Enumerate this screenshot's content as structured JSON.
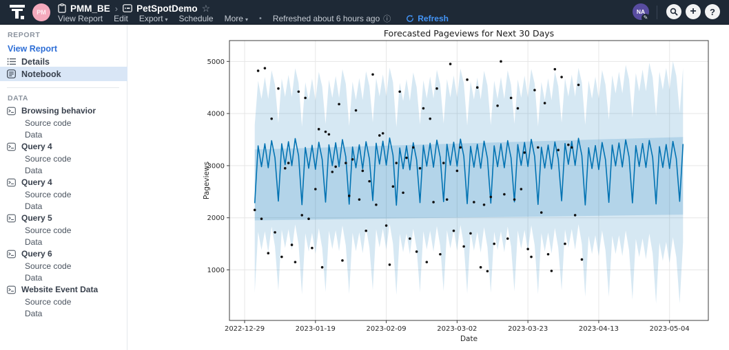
{
  "header": {
    "workspace_avatar": "PM",
    "workspace": "PMM_BE",
    "report_title": "PetSpotDemo",
    "menu": [
      {
        "label": "View Report",
        "caret": false
      },
      {
        "label": "Edit",
        "caret": false
      },
      {
        "label": "Export",
        "caret": true
      },
      {
        "label": "Schedule",
        "caret": false
      },
      {
        "label": "More",
        "caret": true
      }
    ],
    "separator_dot": "•",
    "refreshed_text": "Refreshed about 6 hours ago",
    "info_glyph": "ⓘ",
    "refresh_label": "Refresh",
    "user_initials": "NA",
    "plus_glyph": "+",
    "help_glyph": "?",
    "star_glyph": "☆",
    "breadcrumb_chevron": "›",
    "colors": {
      "bar_bg": "#1e2936",
      "refresh_blue": "#4495f7",
      "avatar_pink": "#f4a9bc",
      "avatar_purple": "#584ca0"
    }
  },
  "sidebar": {
    "report_header": "REPORT",
    "view_report_label": "View Report",
    "nav_items": [
      {
        "label": "Details",
        "selected": false
      },
      {
        "label": "Notebook",
        "selected": true
      }
    ],
    "data_header": "DATA",
    "data_items": [
      {
        "label": "Browsing behavior",
        "children": [
          "Source code",
          "Data"
        ]
      },
      {
        "label": "Query 4",
        "children": [
          "Source code",
          "Data"
        ]
      },
      {
        "label": "Query 4",
        "children": [
          "Source code",
          "Data"
        ]
      },
      {
        "label": "Query 5",
        "children": [
          "Source code",
          "Data"
        ]
      },
      {
        "label": "Query 6",
        "children": [
          "Source code",
          "Data"
        ]
      },
      {
        "label": "Website Event Data",
        "children": [
          "Source code",
          "Data"
        ]
      }
    ],
    "selected_bg": "#d9e6f6"
  },
  "chart_data": {
    "type": "line",
    "title": "Forecasted Pageviews for Next 30 Days",
    "xlabel": "Date",
    "ylabel": "Pageviews",
    "grid": true,
    "legend_position": "none",
    "start_date": "2023-01-01",
    "history_days": 98,
    "forecast_days": 30,
    "xlim_days": [
      -7.5,
      134.5
    ],
    "ylim": [
      30,
      5400
    ],
    "x_ticks": [
      {
        "day": -3,
        "label": "2022-12-29"
      },
      {
        "day": 18,
        "label": "2023-01-19"
      },
      {
        "day": 39,
        "label": "2023-02-09"
      },
      {
        "day": 60,
        "label": "2023-03-02"
      },
      {
        "day": 81,
        "label": "2023-03-23"
      },
      {
        "day": 102,
        "label": "2023-04-13"
      },
      {
        "day": 123,
        "label": "2023-05-04"
      }
    ],
    "y_ticks": [
      1000,
      2000,
      3000,
      4000,
      5000
    ],
    "line_color": "#0072B2",
    "band_fill": "rgba(0,114,178,0.16)",
    "dot_color": "#111111",
    "grid_color": "#e6e6e6",
    "spine_color": "#3c3c3c",
    "inner_band": {
      "start_lower": 1950,
      "start_upper": 3310,
      "end_lower": 2060,
      "end_upper": 3550
    },
    "series": [
      {
        "name": "yhat_forecast",
        "values": [
          2280,
          3380,
          2980,
          3420,
          2960,
          3480,
          3150,
          2320,
          3420,
          3020,
          3460,
          3000,
          3520,
          3190,
          2250,
          3350,
          2950,
          3390,
          2930,
          3450,
          3120,
          2300,
          3400,
          3000,
          3440,
          2980,
          3500,
          3170,
          2260,
          3360,
          2960,
          3400,
          2940,
          3460,
          3130,
          2330,
          3430,
          3030,
          3470,
          3010,
          3530,
          3200,
          2240,
          3340,
          2940,
          3380,
          2920,
          3440,
          3110,
          2290,
          3390,
          2990,
          3430,
          2970,
          3490,
          3160,
          2310,
          3410,
          3010,
          3450,
          2990,
          3510,
          3180,
          2270,
          3370,
          2970,
          3410,
          2950,
          3470,
          3140,
          2280,
          3380,
          2980,
          3420,
          2960,
          3480,
          3150,
          2305,
          3405,
          3005,
          3445,
          2985,
          3505,
          3175,
          2255,
          3355,
          2955,
          3395,
          2935,
          3455,
          3125,
          2325,
          3425,
          3025,
          3465,
          3005,
          3525,
          3195,
          2245,
          3345,
          2945,
          3385,
          2925,
          3445,
          3115,
          2295,
          3395,
          2995,
          3435,
          2975,
          3495,
          3165,
          2285,
          3385,
          2985,
          3425,
          2965,
          3485,
          3155,
          2265,
          3365,
          2965,
          3405,
          2945,
          3465,
          3135,
          2315,
          3415
        ]
      },
      {
        "name": "yhat_upper",
        "values": [
          3780,
          4630,
          4280,
          4700,
          4280,
          4830,
          4550,
          3820,
          4670,
          4320,
          4740,
          4320,
          4870,
          4590,
          3750,
          4600,
          4250,
          4670,
          4250,
          4800,
          4520,
          3800,
          4650,
          4300,
          4720,
          4300,
          4850,
          4570,
          3760,
          4610,
          4260,
          4680,
          4260,
          4810,
          4530,
          3830,
          4680,
          4330,
          4750,
          4330,
          4880,
          4600,
          3740,
          4590,
          4240,
          4660,
          4240,
          4790,
          4510,
          3790,
          4640,
          4290,
          4710,
          4290,
          4840,
          4560,
          3810,
          4660,
          4310,
          4730,
          4310,
          4860,
          4580,
          3770,
          4620,
          4270,
          4690,
          4270,
          4820,
          4540,
          3780,
          4630,
          4280,
          4700,
          4280,
          4830,
          4550,
          3805,
          4655,
          4305,
          4725,
          4305,
          4855,
          4575,
          3755,
          4605,
          4255,
          4675,
          4255,
          4805,
          4525,
          3825,
          4675,
          4325,
          4745,
          4325,
          4875,
          4595,
          3785,
          4635,
          4285,
          4705,
          4285,
          4835,
          4555,
          3885,
          4735,
          4385,
          4805,
          4385,
          4935,
          4655,
          3925,
          4775,
          4425,
          4845,
          4425,
          4975,
          4695,
          3955,
          4805,
          4455,
          4875,
          4455,
          5005,
          4725,
          4020,
          4870
        ]
      },
      {
        "name": "yhat_lower",
        "values": [
          560,
          1730,
          1380,
          1740,
          1340,
          1830,
          1450,
          600,
          1770,
          1420,
          1780,
          1380,
          1870,
          1490,
          530,
          1700,
          1350,
          1710,
          1310,
          1800,
          1420,
          580,
          1750,
          1400,
          1760,
          1360,
          1850,
          1470,
          540,
          1710,
          1360,
          1720,
          1320,
          1810,
          1430,
          610,
          1780,
          1430,
          1790,
          1390,
          1880,
          1500,
          520,
          1690,
          1340,
          1700,
          1300,
          1790,
          1410,
          570,
          1740,
          1390,
          1750,
          1350,
          1840,
          1460,
          590,
          1760,
          1410,
          1770,
          1370,
          1860,
          1480,
          550,
          1720,
          1370,
          1730,
          1330,
          1820,
          1440,
          560,
          1730,
          1380,
          1740,
          1340,
          1830,
          1450,
          585,
          1755,
          1405,
          1765,
          1365,
          1855,
          1475,
          535,
          1705,
          1355,
          1715,
          1315,
          1805,
          1425,
          605,
          1775,
          1425,
          1785,
          1385,
          1875,
          1495,
          485,
          1655,
          1305,
          1665,
          1265,
          1755,
          1375,
          485,
          1655,
          1305,
          1665,
          1265,
          1755,
          1375,
          425,
          1595,
          1245,
          1605,
          1205,
          1695,
          1315,
          355,
          1525,
          1175,
          1535,
          1135,
          1625,
          1245,
          355,
          1525
        ]
      },
      {
        "name": "actual_pageviews",
        "values": [
          2150,
          4820,
          1980,
          4870,
          1320,
          3900,
          1720,
          4480,
          1250,
          2950,
          3050,
          1480,
          1150,
          4420,
          2050,
          4300,
          1980,
          1420,
          2550,
          3700,
          1050,
          3650,
          3600,
          2880,
          2980,
          4180,
          1180,
          3050,
          2420,
          3120,
          4060,
          2350,
          2900,
          1750,
          2700,
          4750,
          2250,
          3580,
          3620,
          1850,
          1100,
          2600,
          3050,
          4420,
          2480,
          3150,
          1600,
          3350,
          1350,
          2950,
          4100,
          1150,
          3900,
          2300,
          4480,
          1300,
          3050,
          2350,
          4950,
          1750,
          2900,
          3350,
          1450,
          4650,
          1700,
          2300,
          4500,
          1050,
          2250,
          975,
          2400,
          1500,
          4150,
          5000,
          2450,
          1600,
          4300,
          2350,
          4100,
          2550,
          3250,
          1400,
          1250,
          4450,
          3350,
          2100,
          4200,
          1300,
          980,
          4850,
          3300,
          4700,
          1500,
          3400,
          3350,
          2050,
          4550,
          1200
        ]
      }
    ]
  }
}
